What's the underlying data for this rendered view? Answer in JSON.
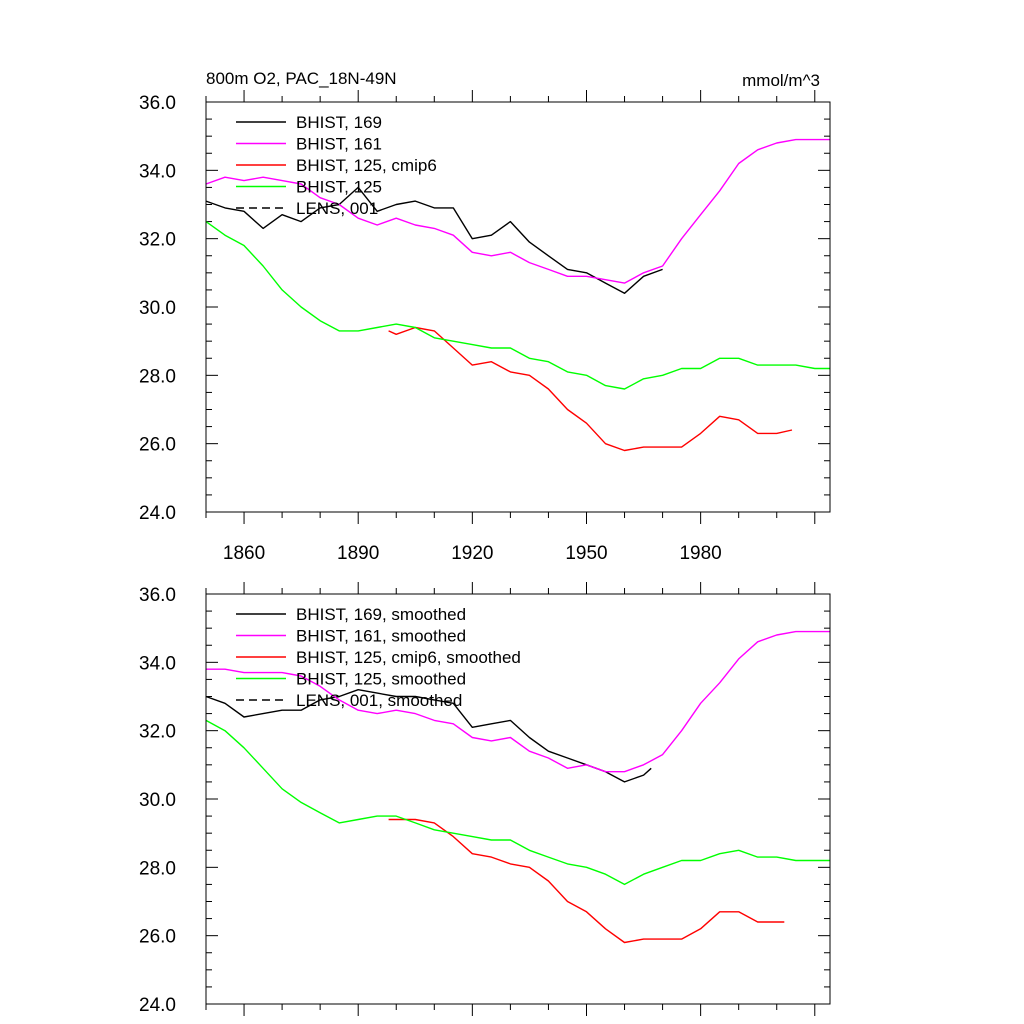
{
  "chart_data": [
    {
      "type": "line",
      "title": "800m O2, PAC_18N-49N",
      "units": "mmol/m^3",
      "xlim": [
        1850,
        2014
      ],
      "ylim": [
        24,
        36
      ],
      "yticks": [
        "24.0",
        "26.0",
        "28.0",
        "30.0",
        "32.0",
        "34.0",
        "36.0"
      ],
      "xticks": [
        "1860",
        "1890",
        "1920",
        "1950",
        "1980"
      ],
      "legend_position": "top-left",
      "series": [
        {
          "name": "BHIST, 169",
          "color": "#000000",
          "dash": "solid",
          "x": [
            1850,
            1855,
            1860,
            1865,
            1870,
            1875,
            1880,
            1885,
            1890,
            1895,
            1900,
            1905,
            1910,
            1915,
            1920,
            1925,
            1930,
            1935,
            1940,
            1945,
            1950,
            1955,
            1960,
            1965,
            1970
          ],
          "y": [
            33.1,
            32.9,
            32.8,
            32.3,
            32.7,
            32.5,
            32.9,
            33.0,
            33.5,
            32.8,
            33.0,
            33.1,
            32.9,
            32.9,
            32.0,
            32.1,
            32.5,
            31.9,
            31.5,
            31.1,
            31.0,
            30.7,
            30.4,
            30.9,
            31.1
          ]
        },
        {
          "name": "BHIST, 161",
          "color": "#ff00ff",
          "dash": "solid",
          "x": [
            1850,
            1855,
            1860,
            1865,
            1870,
            1875,
            1880,
            1885,
            1890,
            1895,
            1900,
            1905,
            1910,
            1915,
            1920,
            1925,
            1930,
            1935,
            1940,
            1945,
            1950,
            1955,
            1960,
            1965,
            1970,
            1975,
            1980,
            1985,
            1990,
            1995,
            2000,
            2005,
            2010,
            2014
          ],
          "y": [
            33.6,
            33.8,
            33.7,
            33.8,
            33.7,
            33.6,
            33.2,
            33.0,
            32.6,
            32.4,
            32.6,
            32.4,
            32.3,
            32.1,
            31.6,
            31.5,
            31.6,
            31.3,
            31.1,
            30.9,
            30.9,
            30.8,
            30.7,
            31.0,
            31.2,
            32.0,
            32.7,
            33.4,
            34.2,
            34.6,
            34.8,
            34.9,
            34.9,
            34.9
          ]
        },
        {
          "name": "BHIST, 125, cmip6",
          "color": "#ff0000",
          "dash": "solid",
          "x": [
            1898,
            1900,
            1905,
            1910,
            1915,
            1920,
            1925,
            1930,
            1935,
            1940,
            1945,
            1950,
            1955,
            1960,
            1965,
            1970,
            1975,
            1980,
            1985,
            1990,
            1995,
            2000,
            2004
          ],
          "y": [
            29.3,
            29.2,
            29.4,
            29.3,
            28.8,
            28.3,
            28.4,
            28.1,
            28.0,
            27.6,
            27.0,
            26.6,
            26.0,
            25.8,
            25.9,
            25.9,
            25.9,
            26.3,
            26.8,
            26.7,
            26.3,
            26.3,
            26.4
          ]
        },
        {
          "name": "BHIST, 125",
          "color": "#00ff00",
          "dash": "solid",
          "x": [
            1850,
            1855,
            1860,
            1865,
            1870,
            1875,
            1880,
            1885,
            1890,
            1895,
            1900,
            1905,
            1910,
            1915,
            1920,
            1925,
            1930,
            1935,
            1940,
            1945,
            1950,
            1955,
            1960,
            1965,
            1970,
            1975,
            1980,
            1985,
            1990,
            1995,
            2000,
            2005,
            2010,
            2014
          ],
          "y": [
            32.5,
            32.1,
            31.8,
            31.2,
            30.5,
            30.0,
            29.6,
            29.3,
            29.3,
            29.4,
            29.5,
            29.4,
            29.1,
            29.0,
            28.9,
            28.8,
            28.8,
            28.5,
            28.4,
            28.1,
            28.0,
            27.7,
            27.6,
            27.9,
            28.0,
            28.2,
            28.2,
            28.5,
            28.5,
            28.3,
            28.3,
            28.3,
            28.2,
            28.2
          ]
        },
        {
          "name": "LENS, 001",
          "color": "#000000",
          "dash": "dashed",
          "x": [],
          "y": []
        }
      ]
    },
    {
      "type": "line",
      "title": "",
      "units": "",
      "xlim": [
        1850,
        2014
      ],
      "ylim": [
        24,
        36
      ],
      "yticks": [
        "24.0",
        "26.0",
        "28.0",
        "30.0",
        "32.0",
        "34.0",
        "36.0"
      ],
      "xticks": [],
      "legend_position": "top-left",
      "series": [
        {
          "name": "BHIST, 169, smoothed",
          "color": "#000000",
          "dash": "solid",
          "x": [
            1850,
            1855,
            1860,
            1865,
            1870,
            1875,
            1880,
            1885,
            1890,
            1895,
            1900,
            1905,
            1910,
            1915,
            1920,
            1925,
            1930,
            1935,
            1940,
            1945,
            1950,
            1955,
            1960,
            1965,
            1967
          ],
          "y": [
            33.0,
            32.8,
            32.4,
            32.5,
            32.6,
            32.6,
            32.9,
            33.0,
            33.2,
            33.1,
            33.0,
            33.0,
            32.9,
            32.8,
            32.1,
            32.2,
            32.3,
            31.8,
            31.4,
            31.2,
            31.0,
            30.8,
            30.5,
            30.7,
            30.9
          ]
        },
        {
          "name": "BHIST, 161, smoothed",
          "color": "#ff00ff",
          "dash": "solid",
          "x": [
            1850,
            1855,
            1860,
            1865,
            1870,
            1875,
            1880,
            1885,
            1890,
            1895,
            1900,
            1905,
            1910,
            1915,
            1920,
            1925,
            1930,
            1935,
            1940,
            1945,
            1950,
            1955,
            1960,
            1965,
            1970,
            1975,
            1980,
            1985,
            1990,
            1995,
            2000,
            2005,
            2010,
            2014
          ],
          "y": [
            33.8,
            33.8,
            33.7,
            33.7,
            33.7,
            33.6,
            33.3,
            32.9,
            32.6,
            32.5,
            32.6,
            32.5,
            32.3,
            32.2,
            31.8,
            31.7,
            31.8,
            31.4,
            31.2,
            30.9,
            31.0,
            30.8,
            30.8,
            31.0,
            31.3,
            32.0,
            32.8,
            33.4,
            34.1,
            34.6,
            34.8,
            34.9,
            34.9,
            34.9
          ]
        },
        {
          "name": "BHIST, 125, cmip6, smoothed",
          "color": "#ff0000",
          "dash": "solid",
          "x": [
            1898,
            1900,
            1905,
            1910,
            1915,
            1920,
            1925,
            1930,
            1935,
            1940,
            1945,
            1950,
            1955,
            1960,
            1965,
            1970,
            1975,
            1980,
            1985,
            1990,
            1995,
            2000,
            2002
          ],
          "y": [
            29.4,
            29.4,
            29.4,
            29.3,
            28.9,
            28.4,
            28.3,
            28.1,
            28.0,
            27.6,
            27.0,
            26.7,
            26.2,
            25.8,
            25.9,
            25.9,
            25.9,
            26.2,
            26.7,
            26.7,
            26.4,
            26.4,
            26.4
          ]
        },
        {
          "name": "BHIST, 125, smoothed",
          "color": "#00ff00",
          "dash": "solid",
          "x": [
            1850,
            1855,
            1860,
            1865,
            1870,
            1875,
            1880,
            1885,
            1890,
            1895,
            1900,
            1905,
            1910,
            1915,
            1920,
            1925,
            1930,
            1935,
            1940,
            1945,
            1950,
            1955,
            1960,
            1965,
            1970,
            1975,
            1980,
            1985,
            1990,
            1995,
            2000,
            2005,
            2010,
            2014
          ],
          "y": [
            32.3,
            32.0,
            31.5,
            30.9,
            30.3,
            29.9,
            29.6,
            29.3,
            29.4,
            29.5,
            29.5,
            29.3,
            29.1,
            29.0,
            28.9,
            28.8,
            28.8,
            28.5,
            28.3,
            28.1,
            28.0,
            27.8,
            27.5,
            27.8,
            28.0,
            28.2,
            28.2,
            28.4,
            28.5,
            28.3,
            28.3,
            28.2,
            28.2,
            28.2
          ]
        },
        {
          "name": "LENS, 001, smoothed",
          "color": "#000000",
          "dash": "dashed",
          "x": [],
          "y": []
        }
      ]
    }
  ]
}
